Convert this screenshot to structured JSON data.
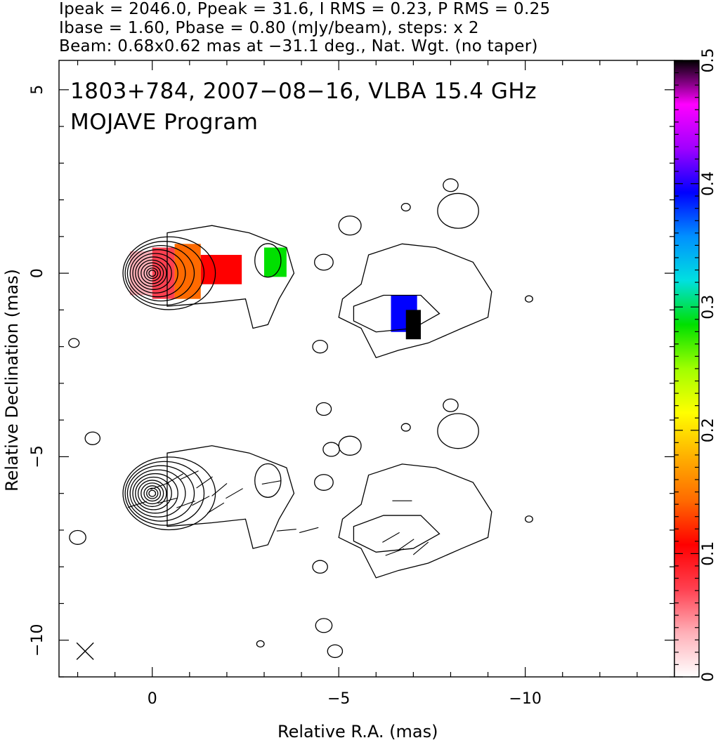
{
  "header": {
    "line1": "Ipeak = 2046.0, Ppeak = 31.6, I RMS = 0.23, P RMS = 0.25",
    "line2": "Ibase = 1.60, Pbase = 0.80 (mJy/beam), steps: x 2",
    "line3": "Beam: 0.68x0.62 mas at −31.1 deg., Nat. Wgt. (no taper)"
  },
  "plot_title": {
    "line1": "1803+784, 2007−08−16, VLBA 15.4 GHz",
    "line2": "MOJAVE Program"
  },
  "chart_data": {
    "type": "heatmap",
    "xlabel": "Relative R.A. (mas)",
    "ylabel": "Relative Declination (mas)",
    "xlim": [
      2.5,
      -14
    ],
    "ylim": [
      -11,
      5.8
    ],
    "x_ticks": [
      0,
      -5,
      -10
    ],
    "x_tick_labels": [
      "0",
      "−5",
      "−10"
    ],
    "y_ticks": [
      5,
      0,
      -5,
      -10
    ],
    "y_tick_labels": [
      "5",
      "0",
      "−5",
      "−10"
    ],
    "colorbar": {
      "range": [
        0,
        0.5
      ],
      "ticks": [
        0,
        0.1,
        0.2,
        0.3,
        0.4,
        0.5
      ],
      "tick_labels": [
        "0",
        "0.1",
        "0.2",
        "0.3",
        "0.4",
        "0.5"
      ],
      "stops": [
        "#ffffff",
        "#ffb0b8",
        "#ff4050",
        "#ff0000",
        "#ff6a00",
        "#ffb000",
        "#ffff00",
        "#a0ff00",
        "#00e000",
        "#00e0e0",
        "#0090ff",
        "#0000ff",
        "#a000ff",
        "#ff00ff",
        "#000000"
      ]
    },
    "upper_panel": "total intensity contours with fractional polarization color",
    "lower_panel": "total intensity contours with EVPA sticks",
    "peak_component": {
      "x": 0,
      "y": 0
    },
    "lower_panel_offset_y": -6,
    "contour_base_mJy_per_beam": 1.6,
    "contour_step_factor": 2,
    "color_regions": [
      {
        "x0": 0.6,
        "x1": 0.0,
        "y0": 0.6,
        "y1": -0.6,
        "value": 0.02
      },
      {
        "x0": 0.0,
        "x1": -0.6,
        "y0": 0.7,
        "y1": -0.7,
        "value": 0.06
      },
      {
        "x0": -0.6,
        "x1": -1.3,
        "y0": 0.8,
        "y1": -0.7,
        "value": 0.16
      },
      {
        "x0": -1.3,
        "x1": -2.4,
        "y0": 0.5,
        "y1": -0.3,
        "value": 0.1
      },
      {
        "x0": -3.0,
        "x1": -3.6,
        "y0": 0.7,
        "y1": -0.1,
        "value": 0.27
      },
      {
        "x0": -6.4,
        "x1": -7.1,
        "y0": -0.6,
        "y1": -1.6,
        "value": 0.38
      },
      {
        "x0": -6.8,
        "x1": -7.2,
        "y0": -1.0,
        "y1": -1.8,
        "value": 0.5
      }
    ]
  }
}
